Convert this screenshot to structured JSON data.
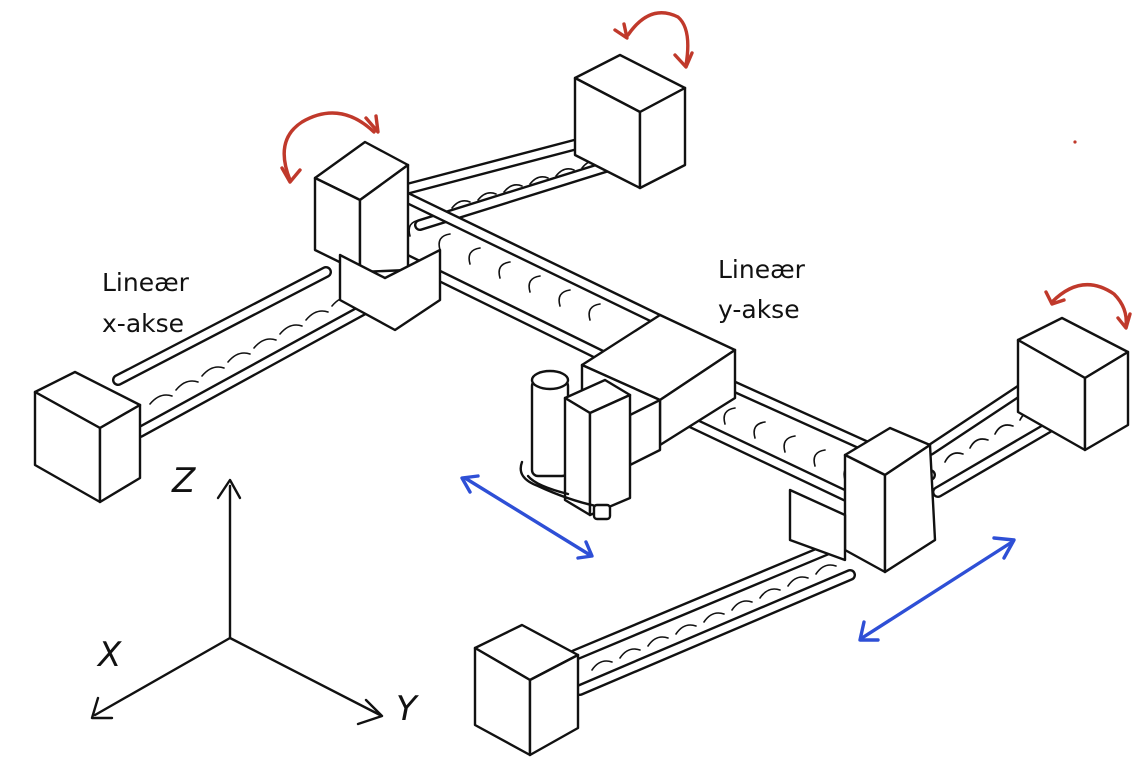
{
  "labels": {
    "x_axis_line1": "Lineær",
    "x_axis_line2": "x-akse",
    "y_axis_line1": "Lineær",
    "y_axis_line2": "y-akse"
  },
  "coordinate_axes": {
    "z": "Z",
    "x": "X",
    "y": "Y"
  },
  "colors": {
    "ink": "#111111",
    "rotation_arrow": "#c0392b",
    "translation_arrow": "#2e4fd6",
    "background": "#ffffff"
  }
}
